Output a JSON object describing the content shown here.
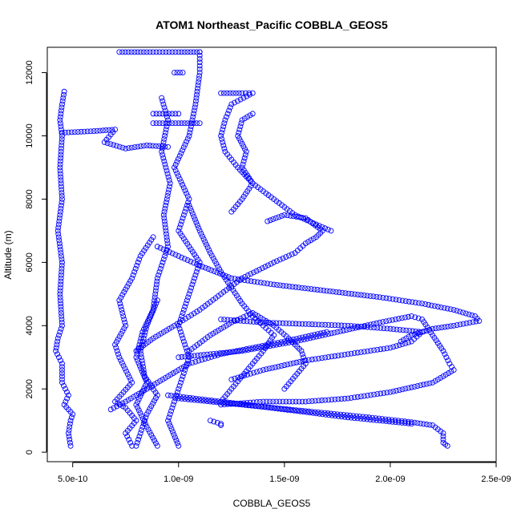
{
  "chart_data": {
    "type": "scatter",
    "title": "ATOM1 Northeast_Pacific COBBLA_GEOS5",
    "xlabel": "COBBLA_GEOS5",
    "ylabel": "Altitude (m)",
    "xlim": [
      3.8e-10,
      2.5e-09
    ],
    "ylim": [
      -300,
      12800
    ],
    "xticks": [
      5e-10,
      1e-09,
      1.5e-09,
      2e-09,
      2.5e-09
    ],
    "xtick_labels": [
      "5.0e-10",
      "1.0e-09",
      "1.5e-09",
      "2.0e-09",
      "2.5e-09"
    ],
    "yticks": [
      0,
      2000,
      4000,
      6000,
      8000,
      10000,
      12000
    ],
    "ytick_labels": [
      "0",
      "2000",
      "4000",
      "6000",
      "8000",
      "10000",
      "12000"
    ],
    "grid": false,
    "marker": "open-circle",
    "series_color": "#0000ff",
    "series": [
      {
        "points": [
          [
            4.9e-10,
            200
          ],
          [
            4.8e-10,
            600
          ],
          [
            4.9e-10,
            1000
          ],
          [
            5e-10,
            1200
          ],
          [
            4.6e-10,
            1500
          ],
          [
            4.8e-10,
            1800
          ],
          [
            4.5e-10,
            2200
          ],
          [
            4.5e-10,
            2800
          ],
          [
            4.2e-10,
            3200
          ],
          [
            4.3e-10,
            3600
          ],
          [
            4.5e-10,
            4000
          ],
          [
            4.4e-10,
            5000
          ],
          [
            4.5e-10,
            6000
          ],
          [
            4.3e-10,
            7000
          ],
          [
            4.5e-10,
            8000
          ],
          [
            4.4e-10,
            9000
          ],
          [
            4.5e-10,
            10000
          ],
          [
            4.4e-10,
            10500
          ],
          [
            4.5e-10,
            11000
          ],
          [
            4.6e-10,
            11400
          ]
        ]
      },
      {
        "points": [
          [
            4.5e-10,
            10100
          ],
          [
            6e-10,
            10150
          ],
          [
            7e-10,
            10200
          ],
          [
            6.5e-10,
            9800
          ],
          [
            7.5e-10,
            9600
          ],
          [
            8.5e-10,
            9700
          ],
          [
            9.5e-10,
            9650
          ]
        ]
      },
      {
        "points": [
          [
            9e-10,
            200
          ],
          [
            8.5e-10,
            800
          ],
          [
            8e-10,
            1500
          ],
          [
            8.5e-10,
            2200
          ],
          [
            8e-10,
            3000
          ],
          [
            8.3e-10,
            3800
          ],
          [
            8.8e-10,
            4500
          ],
          [
            9e-10,
            5500
          ],
          [
            9.5e-10,
            6500
          ],
          [
            9.3e-10,
            7500
          ],
          [
            9.6e-10,
            8500
          ],
          [
            9.2e-10,
            9500
          ],
          [
            9.5e-10,
            10500
          ],
          [
            9.2e-10,
            11200
          ]
        ]
      },
      {
        "points": [
          [
            1e-09,
            200
          ],
          [
            9.5e-10,
            1000
          ],
          [
            1e-09,
            2000
          ],
          [
            1.05e-09,
            3000
          ],
          [
            1e-09,
            4000
          ],
          [
            1.05e-09,
            5000
          ],
          [
            1.1e-09,
            6000
          ],
          [
            1e-09,
            7000
          ],
          [
            1.05e-09,
            8000
          ],
          [
            9.8e-10,
            9000
          ],
          [
            1.05e-09,
            10000
          ],
          [
            1.08e-09,
            11000
          ],
          [
            1.1e-09,
            12000
          ],
          [
            1.1e-09,
            12650
          ]
        ]
      },
      {
        "points": [
          [
            7.2e-10,
            12650
          ],
          [
            8.5e-10,
            12650
          ],
          [
            1e-09,
            12650
          ],
          [
            1.1e-09,
            12650
          ]
        ]
      },
      {
        "points": [
          [
            9.8e-10,
            12000
          ],
          [
            1.02e-09,
            12000
          ]
        ]
      },
      {
        "points": [
          [
            8.8e-10,
            10400
          ],
          [
            1e-09,
            10400
          ],
          [
            1.1e-09,
            10400
          ]
        ]
      },
      {
        "points": [
          [
            8.8e-10,
            10700
          ],
          [
            1e-09,
            10700
          ]
        ]
      },
      {
        "points": [
          [
            7.8e-10,
            200
          ],
          [
            7.5e-10,
            600
          ],
          [
            8e-10,
            1000
          ],
          [
            7.5e-10,
            1400
          ],
          [
            7e-10,
            1600
          ],
          [
            7.8e-10,
            2200
          ],
          [
            7.2e-10,
            3000
          ],
          [
            7e-10,
            3400
          ],
          [
            7.5e-10,
            4000
          ],
          [
            7.2e-10,
            4800
          ],
          [
            7.8e-10,
            5500
          ],
          [
            8.2e-10,
            6200
          ],
          [
            8.8e-10,
            6800
          ]
        ]
      },
      {
        "points": [
          [
            6.8e-10,
            1350
          ],
          [
            7.5e-10,
            1600
          ],
          [
            8.5e-10,
            2000
          ],
          [
            9.5e-10,
            2400
          ],
          [
            1.05e-09,
            2800
          ],
          [
            1.2e-09,
            3100
          ],
          [
            1.35e-09,
            3300
          ],
          [
            1.5e-09,
            3500
          ],
          [
            1.6e-09,
            3650
          ],
          [
            1.7e-09,
            3800
          ]
        ]
      },
      {
        "points": [
          [
            1.15e-09,
            1000
          ],
          [
            1.2e-09,
            900
          ],
          [
            1.2e-09,
            850
          ]
        ]
      },
      {
        "points": [
          [
            8e-10,
            3200
          ],
          [
            8.8e-10,
            3600
          ],
          [
            9.8e-10,
            4000
          ],
          [
            1.1e-09,
            4500
          ],
          [
            1.2e-09,
            5000
          ],
          [
            1.3e-09,
            5500
          ],
          [
            1.45e-09,
            6000
          ],
          [
            1.55e-09,
            6300
          ],
          [
            1.6e-09,
            6600
          ],
          [
            1.65e-09,
            6800
          ],
          [
            1.68e-09,
            7000
          ],
          [
            1.6e-09,
            7400
          ],
          [
            1.5e-09,
            7500
          ],
          [
            1.42e-09,
            7300
          ]
        ]
      },
      {
        "points": [
          [
            1.25e-09,
            7600
          ],
          [
            1.3e-09,
            8000
          ],
          [
            1.35e-09,
            8500
          ],
          [
            1.3e-09,
            9000
          ],
          [
            1.32e-09,
            9500
          ],
          [
            1.28e-09,
            10000
          ],
          [
            1.3e-09,
            10500
          ],
          [
            1.35e-09,
            10700
          ]
        ]
      },
      {
        "points": [
          [
            1.2e-09,
            11350
          ],
          [
            1.3e-09,
            11350
          ],
          [
            1.35e-09,
            11350
          ],
          [
            1.25e-09,
            11000
          ],
          [
            1.22e-09,
            10500
          ],
          [
            1.2e-09,
            10000
          ],
          [
            1.22e-09,
            9500
          ],
          [
            1.28e-09,
            9000
          ],
          [
            1.35e-09,
            8500
          ],
          [
            1.45e-09,
            8000
          ],
          [
            1.55e-09,
            7500
          ],
          [
            1.65e-09,
            7200
          ],
          [
            1.72e-09,
            7000
          ]
        ]
      },
      {
        "points": [
          [
            9e-10,
            6500
          ],
          [
            1e-09,
            6200
          ],
          [
            1.1e-09,
            5900
          ],
          [
            1.25e-09,
            5500
          ],
          [
            1.45e-09,
            5300
          ],
          [
            1.7e-09,
            5100
          ],
          [
            1.95e-09,
            4900
          ],
          [
            2.15e-09,
            4700
          ],
          [
            2.3e-09,
            4500
          ],
          [
            2.4e-09,
            4300
          ],
          [
            2.42e-09,
            4150
          ],
          [
            2.3e-09,
            4000
          ],
          [
            2.2e-09,
            3900
          ],
          [
            2.1e-09,
            3700
          ],
          [
            2.05e-09,
            3500
          ]
        ]
      },
      {
        "points": [
          [
            1.2e-09,
            4200
          ],
          [
            1.4e-09,
            4100
          ],
          [
            1.6e-09,
            4050
          ],
          [
            1.8e-09,
            4000
          ],
          [
            2e-09,
            3900
          ],
          [
            2.15e-09,
            3800
          ],
          [
            2.1e-09,
            3500
          ],
          [
            2e-09,
            3300
          ],
          [
            1.8e-09,
            3100
          ],
          [
            1.6e-09,
            2900
          ],
          [
            1.4e-09,
            2600
          ],
          [
            1.25e-09,
            2300
          ]
        ]
      },
      {
        "points": [
          [
            1e-09,
            3000
          ],
          [
            1.3e-09,
            3200
          ],
          [
            1.55e-09,
            3500
          ],
          [
            1.75e-09,
            3800
          ],
          [
            1.95e-09,
            4100
          ],
          [
            2.1e-09,
            4300
          ],
          [
            2.15e-09,
            4200
          ],
          [
            2.2e-09,
            3700
          ],
          [
            2.25e-09,
            3200
          ],
          [
            2.28e-09,
            2800
          ],
          [
            2.3e-09,
            2600
          ],
          [
            2.2e-09,
            2200
          ],
          [
            2e-09,
            1900
          ],
          [
            1.8e-09,
            1700
          ],
          [
            1.6e-09,
            1600
          ],
          [
            1.4e-09,
            1600
          ],
          [
            1.2e-09,
            1500
          ]
        ]
      },
      {
        "points": [
          [
            1e-09,
            1700
          ],
          [
            1.3e-09,
            1500
          ],
          [
            1.6e-09,
            1300
          ],
          [
            1.9e-09,
            1100
          ],
          [
            2.1e-09,
            950
          ],
          [
            2.2e-09,
            850
          ],
          [
            2.25e-09,
            600
          ],
          [
            2.25e-09,
            300
          ],
          [
            2.27e-09,
            200
          ]
        ]
      },
      {
        "points": [
          [
            9.5e-10,
            1800
          ],
          [
            1.2e-09,
            1600
          ],
          [
            1.5e-09,
            1350
          ],
          [
            1.8e-09,
            1100
          ],
          [
            2.1e-09,
            900
          ]
        ]
      },
      {
        "points": [
          [
            1.05e-09,
            7800
          ],
          [
            1.1e-09,
            7000
          ],
          [
            1.15e-09,
            6300
          ],
          [
            1.2e-09,
            5700
          ],
          [
            1.25e-09,
            5200
          ],
          [
            1.3e-09,
            4700
          ],
          [
            1.35e-09,
            4300
          ],
          [
            1.4e-09,
            4000
          ],
          [
            1.45e-09,
            3700
          ],
          [
            1.4e-09,
            3200
          ],
          [
            1.35e-09,
            2800
          ],
          [
            1.3e-09,
            2400
          ],
          [
            1.25e-09,
            2000
          ],
          [
            1.2e-09,
            1600
          ]
        ]
      },
      {
        "points": [
          [
            9e-10,
            4800
          ],
          [
            8.5e-10,
            4000
          ],
          [
            8.2e-10,
            3200
          ],
          [
            8.4e-10,
            2400
          ],
          [
            9e-10,
            1800
          ],
          [
            8.5e-10,
            1200
          ],
          [
            8.2e-10,
            600
          ],
          [
            8e-10,
            200
          ]
        ]
      },
      {
        "points": [
          [
            1.05e-09,
            3200
          ],
          [
            1.15e-09,
            3700
          ],
          [
            1.25e-09,
            4100
          ],
          [
            1.35e-09,
            4400
          ],
          [
            1.45e-09,
            4000
          ],
          [
            1.52e-09,
            3600
          ],
          [
            1.58e-09,
            3200
          ],
          [
            1.6e-09,
            2800
          ],
          [
            1.55e-09,
            2400
          ],
          [
            1.5e-09,
            2000
          ]
        ]
      }
    ]
  }
}
